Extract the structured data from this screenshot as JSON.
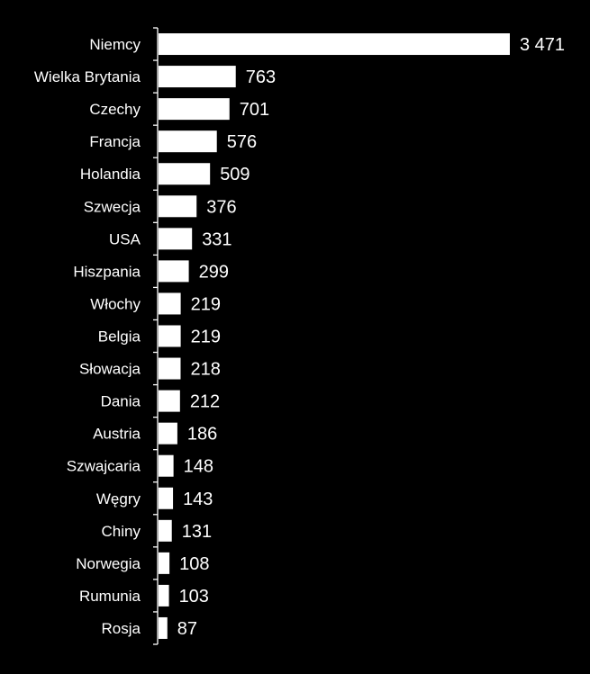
{
  "chart_data": {
    "type": "bar",
    "orientation": "horizontal",
    "title": "",
    "xlabel": "",
    "ylabel": "",
    "categories": [
      "Niemcy",
      "Wielka Brytania",
      "Czechy",
      "Francja",
      "Holandia",
      "Szwecja",
      "USA",
      "Hiszpania",
      "Włochy",
      "Belgia",
      "Słowacja",
      "Dania",
      "Austria",
      "Szwajcaria",
      "Węgry",
      "Chiny",
      "Norwegia",
      "Rumunia",
      "Rosja"
    ],
    "values": [
      3471,
      763,
      701,
      576,
      509,
      376,
      331,
      299,
      219,
      219,
      218,
      212,
      186,
      148,
      143,
      131,
      108,
      103,
      87
    ],
    "value_labels": [
      "3 471",
      "763",
      "701",
      "576",
      "509",
      "376",
      "331",
      "299",
      "219",
      "219",
      "218",
      "212",
      "186",
      "148",
      "143",
      "131",
      "108",
      "103",
      "87"
    ],
    "xlim": [
      0,
      3471
    ],
    "grid": false,
    "legend": "none",
    "colors": {
      "background": "#000000",
      "bar": "#ffffff",
      "text": "#ffffff",
      "axis": "#ffffff"
    }
  }
}
